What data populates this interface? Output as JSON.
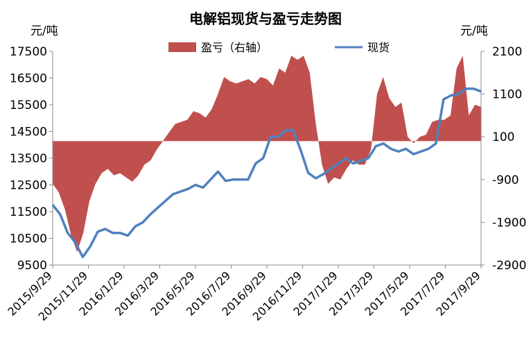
{
  "chart_data": {
    "type": "area+line",
    "title": "电解铝现货与盈亏走势图",
    "ylabel_left": "元/吨",
    "ylabel_right": "元/吨",
    "legend_position": "top",
    "grid": false,
    "y_left": {
      "min": 9500,
      "max": 17500,
      "ticks": [
        "17500",
        "16500",
        "15500",
        "14500",
        "13500",
        "12500",
        "11500",
        "10500",
        "9500"
      ]
    },
    "y_right": {
      "min": -2900,
      "max": 2100,
      "ticks": [
        "2100",
        "1100",
        "100",
        "-900",
        "-1900",
        "-2900"
      ]
    },
    "x_tick_labels": [
      "2015/9/29",
      "2015/11/29",
      "2016/1/29",
      "2016/3/29",
      "2016/5/29",
      "2016/7/29",
      "2016/9/29",
      "2016/11/29",
      "2017/1/29",
      "2017/3/29",
      "2017/5/29",
      "2017/7/29",
      "2017/9/29"
    ],
    "series": [
      {
        "name": "盈亏（右轴）",
        "type": "area",
        "axis": "right",
        "color": "#c0504d",
        "values": [
          -1000,
          -1200,
          -1600,
          -2200,
          -2600,
          -2150,
          -1400,
          -1000,
          -750,
          -650,
          -800,
          -750,
          -850,
          -950,
          -800,
          -550,
          -450,
          -200,
          0,
          200,
          400,
          450,
          500,
          700,
          650,
          550,
          750,
          1100,
          1500,
          1400,
          1350,
          1400,
          1450,
          1350,
          1500,
          1450,
          1300,
          1700,
          1600,
          2000,
          1900,
          2000,
          1600,
          400,
          -550,
          -1000,
          -850,
          -900,
          -650,
          -450,
          -550,
          -550,
          -200,
          1100,
          1500,
          1000,
          800,
          900,
          100,
          -50,
          100,
          150,
          450,
          500,
          500,
          600,
          1700,
          2000,
          600,
          850,
          800
        ]
      },
      {
        "name": "现货",
        "type": "line",
        "axis": "left",
        "color": "#4f81bd",
        "values": [
          11750,
          11400,
          10700,
          10350,
          9800,
          10200,
          10750,
          10850,
          10700,
          10700,
          10600,
          10950,
          11100,
          11400,
          11650,
          11900,
          12150,
          12250,
          12350,
          12500,
          12400,
          12700,
          13000,
          12650,
          12700,
          12700,
          12700,
          13300,
          13500,
          14300,
          14300,
          14550,
          14550,
          13800,
          12950,
          12750,
          12900,
          13100,
          13300,
          13500,
          13300,
          13400,
          13500,
          13950,
          14050,
          13850,
          13750,
          13850,
          13650,
          13750,
          13850,
          14050,
          15700,
          15850,
          15900,
          16100,
          16100,
          16000
        ]
      }
    ]
  }
}
